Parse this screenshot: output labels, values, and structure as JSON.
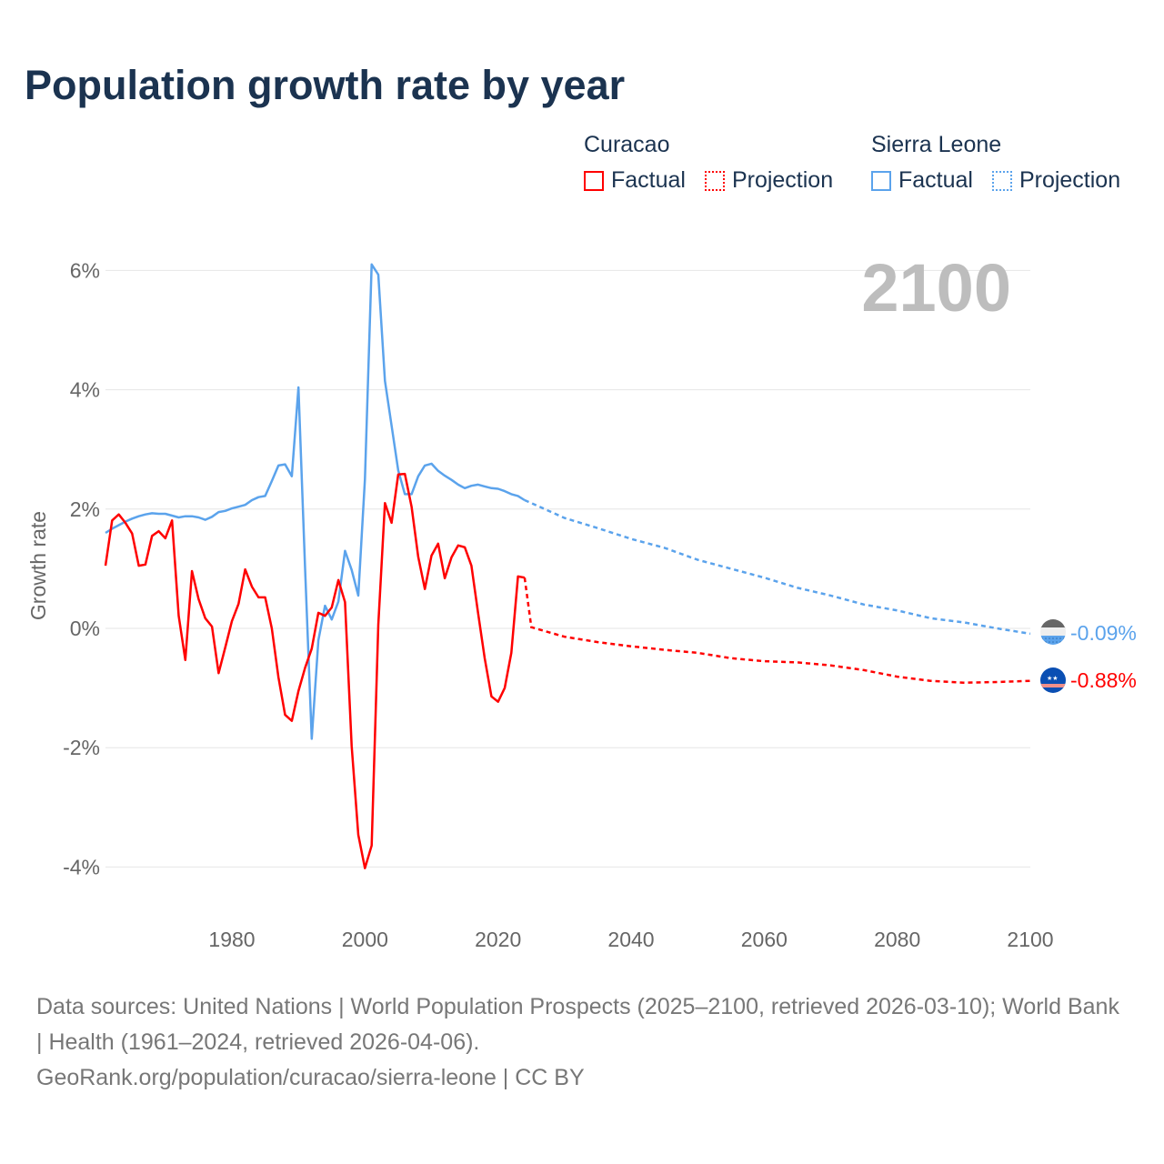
{
  "title": "Population growth rate by year",
  "legend": {
    "groups": [
      {
        "name": "Curacao",
        "factual": "Factual",
        "projection": "Projection",
        "color": "#ff0000"
      },
      {
        "name": "Sierra Leone",
        "factual": "Factual",
        "projection": "Projection",
        "color": "#5ba3ec"
      }
    ]
  },
  "year_display": "2100",
  "footer": {
    "sources": "Data sources: United Nations | World Population Prospects (2025–2100, retrieved 2026-03-10); World Bank | Health (1961–2024, retrieved 2026-04-06).",
    "link": "GeoRank.org/population/curacao/sierra-leone | CC BY"
  },
  "chart_data": {
    "type": "line",
    "title": "Population growth rate by year",
    "xlabel": "",
    "ylabel": "Growth rate",
    "xlim": [
      1961,
      2100
    ],
    "ylim": [
      -4.6,
      6.5
    ],
    "x_ticks": [
      1980,
      2000,
      2020,
      2040,
      2060,
      2080,
      2100
    ],
    "y_ticks": [
      -4,
      -2,
      0,
      2,
      4,
      6
    ],
    "y_tick_labels": [
      "-4%",
      "-2%",
      "0%",
      "2%",
      "4%",
      "6%"
    ],
    "grid": true,
    "legend_position": "top-right",
    "series": [
      {
        "name": "Curacao",
        "color": "#ff0000",
        "end_label": "-0.88%",
        "factual": {
          "x": [
            1961,
            1962,
            1963,
            1964,
            1965,
            1966,
            1967,
            1968,
            1969,
            1970,
            1971,
            1972,
            1973,
            1974,
            1975,
            1976,
            1977,
            1978,
            1979,
            1980,
            1981,
            1982,
            1983,
            1984,
            1985,
            1986,
            1987,
            1988,
            1989,
            1990,
            1991,
            1992,
            1993,
            1994,
            1995,
            1996,
            1997,
            1998,
            1999,
            2000,
            2001,
            2002,
            2003,
            2004,
            2005,
            2006,
            2007,
            2008,
            2009,
            2010,
            2011,
            2012,
            2013,
            2014,
            2015,
            2016,
            2017,
            2018,
            2019,
            2020,
            2021,
            2022,
            2023,
            2024
          ],
          "y": [
            1.05,
            1.81,
            1.91,
            1.77,
            1.59,
            1.05,
            1.07,
            1.55,
            1.63,
            1.51,
            1.81,
            0.21,
            -0.53,
            0.96,
            0.49,
            0.17,
            0.03,
            -0.75,
            -0.32,
            0.12,
            0.41,
            0.99,
            0.7,
            0.52,
            0.52,
            0.0,
            -0.82,
            -1.45,
            -1.55,
            -1.05,
            -0.66,
            -0.34,
            0.26,
            0.21,
            0.35,
            0.81,
            0.44,
            -1.97,
            -3.46,
            -4.02,
            -3.64,
            0.06,
            2.1,
            1.77,
            2.58,
            2.59,
            2.04,
            1.2,
            0.66,
            1.22,
            1.42,
            0.84,
            1.19,
            1.39,
            1.36,
            1.05,
            0.26,
            -0.5,
            -1.14,
            -1.23,
            -1.0,
            -0.41,
            0.87,
            0.85
          ]
        },
        "projection": {
          "x": [
            2024,
            2025,
            2030,
            2035,
            2040,
            2045,
            2050,
            2055,
            2060,
            2065,
            2070,
            2075,
            2080,
            2085,
            2090,
            2095,
            2100
          ],
          "y": [
            0.85,
            0.02,
            -0.14,
            -0.23,
            -0.3,
            -0.36,
            -0.41,
            -0.5,
            -0.55,
            -0.57,
            -0.62,
            -0.7,
            -0.81,
            -0.88,
            -0.91,
            -0.9,
            -0.88
          ]
        }
      },
      {
        "name": "Sierra Leone",
        "color": "#5ba3ec",
        "end_label": "-0.09%",
        "factual": {
          "x": [
            1961,
            1962,
            1963,
            1964,
            1965,
            1966,
            1967,
            1968,
            1969,
            1970,
            1971,
            1972,
            1973,
            1974,
            1975,
            1976,
            1977,
            1978,
            1979,
            1980,
            1981,
            1982,
            1983,
            1984,
            1985,
            1986,
            1987,
            1988,
            1989,
            1990,
            1991,
            1992,
            1993,
            1994,
            1995,
            1996,
            1997,
            1998,
            1999,
            2000,
            2001,
            2002,
            2003,
            2004,
            2005,
            2006,
            2007,
            2008,
            2009,
            2010,
            2011,
            2012,
            2013,
            2014,
            2015,
            2016,
            2017,
            2018,
            2019,
            2020,
            2021,
            2022,
            2023,
            2024
          ],
          "y": [
            1.6,
            1.67,
            1.73,
            1.79,
            1.84,
            1.88,
            1.91,
            1.93,
            1.92,
            1.92,
            1.89,
            1.86,
            1.88,
            1.88,
            1.86,
            1.82,
            1.87,
            1.95,
            1.97,
            2.01,
            2.04,
            2.07,
            2.15,
            2.2,
            2.22,
            2.47,
            2.73,
            2.75,
            2.55,
            4.04,
            1.0,
            -1.85,
            -0.2,
            0.38,
            0.15,
            0.45,
            1.3,
            0.98,
            0.55,
            2.5,
            6.1,
            5.93,
            4.15,
            3.4,
            2.65,
            2.25,
            2.25,
            2.55,
            2.73,
            2.76,
            2.64,
            2.56,
            2.49,
            2.41,
            2.35,
            2.39,
            2.41,
            2.38,
            2.35,
            2.34,
            2.3,
            2.25,
            2.22,
            2.15
          ]
        },
        "projection": {
          "x": [
            2024,
            2025,
            2030,
            2035,
            2040,
            2045,
            2050,
            2055,
            2060,
            2065,
            2070,
            2075,
            2080,
            2085,
            2090,
            2095,
            2100
          ],
          "y": [
            2.15,
            2.1,
            1.85,
            1.68,
            1.5,
            1.35,
            1.15,
            1.0,
            0.85,
            0.68,
            0.55,
            0.4,
            0.3,
            0.17,
            0.1,
            0.0,
            -0.09
          ]
        }
      }
    ]
  }
}
